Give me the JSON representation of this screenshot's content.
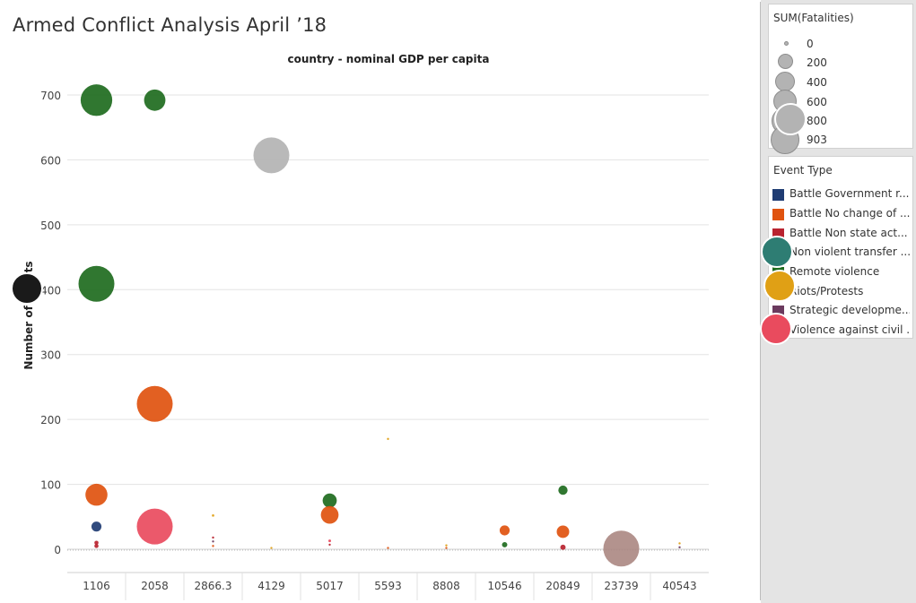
{
  "dashboard": {
    "title": "Armed Conflict Analysis April ’18"
  },
  "chart_data": {
    "type": "scatter",
    "title": "country - nominal GDP per capita",
    "xlabel": "",
    "ylabel": "Number of Events",
    "ylim": [
      0,
      720
    ],
    "yticks": [
      0,
      100,
      200,
      300,
      400,
      500,
      600,
      700
    ],
    "categories": [
      "1106",
      "2058",
      "2866.3",
      "4129",
      "5017",
      "5593",
      "8808",
      "10546",
      "20849",
      "23739",
      "40543"
    ],
    "grid": true,
    "size_legend": {
      "title": "SUM(Fatalities)",
      "values": [
        0,
        200,
        400,
        600,
        800,
        903
      ],
      "labels": [
        "0",
        "200",
        "400",
        "600",
        "800",
        "903"
      ]
    },
    "color_legend": {
      "title": "Event Type",
      "items": [
        {
          "name": "Battle Government r...",
          "color": "#1f3c73"
        },
        {
          "name": "Battle No change of ...",
          "color": "#e0530f"
        },
        {
          "name": "Battle Non state act...",
          "color": "#b8232f"
        },
        {
          "name": "Non violent transfer ...",
          "color": "#2e7d73"
        },
        {
          "name": "Remote violence",
          "color": "#1e6b1e"
        },
        {
          "name": "Riots/Protests",
          "color": "#e0a015"
        },
        {
          "name": "Strategic developme...",
          "color": "#6b3a5e"
        },
        {
          "name": "Violence against civil ...",
          "color": "#e94b5e"
        }
      ]
    },
    "series": [
      {
        "category": "1106",
        "y": 692,
        "fatalities": 700,
        "color": "#1e6b1e"
      },
      {
        "category": "2058",
        "y": 692,
        "fatalities": 320,
        "color": "#1e6b1e"
      },
      {
        "category": "4129",
        "y": 607,
        "fatalities": 903,
        "color": "#b3b3b3"
      },
      {
        "category": "1106",
        "y": 409,
        "fatalities": 903,
        "color": "#1e6b1e"
      },
      {
        "category": "2058",
        "y": 224,
        "fatalities": 903,
        "color": "#e0530f"
      },
      {
        "category": "1106",
        "y": 84,
        "fatalities": 340,
        "color": "#e0530f"
      },
      {
        "category": "1106",
        "y": 35,
        "fatalities": 70,
        "color": "#1f3c73"
      },
      {
        "category": "1106",
        "y": 10,
        "fatalities": 12,
        "color": "#b8232f"
      },
      {
        "category": "1106",
        "y": 5,
        "fatalities": 12,
        "color": "#b8232f"
      },
      {
        "category": "2058",
        "y": 35,
        "fatalities": 903,
        "color": "#e94b5e"
      },
      {
        "category": "2866.3",
        "y": 52,
        "fatalities": 4,
        "color": "#e0a015"
      },
      {
        "category": "2866.3",
        "y": 18,
        "fatalities": 2,
        "color": "#b8232f"
      },
      {
        "category": "2866.3",
        "y": 12,
        "fatalities": 2,
        "color": "#6b3a5e"
      },
      {
        "category": "2866.3",
        "y": 5,
        "fatalities": 2,
        "color": "#e0530f"
      },
      {
        "category": "4129",
        "y": 2,
        "fatalities": 1,
        "color": "#e0a015"
      },
      {
        "category": "5017",
        "y": 75,
        "fatalities": 140,
        "color": "#1e6b1e"
      },
      {
        "category": "5017",
        "y": 53,
        "fatalities": 220,
        "color": "#e0530f"
      },
      {
        "category": "5017",
        "y": 13,
        "fatalities": 5,
        "color": "#e94b5e"
      },
      {
        "category": "5017",
        "y": 7,
        "fatalities": 3,
        "color": "#b8232f"
      },
      {
        "category": "5593",
        "y": 170,
        "fatalities": 1,
        "color": "#e0a015"
      },
      {
        "category": "5593",
        "y": 2,
        "fatalities": 3,
        "color": "#e0530f"
      },
      {
        "category": "8808",
        "y": 6,
        "fatalities": 2,
        "color": "#e0a015"
      },
      {
        "category": "8808",
        "y": 2,
        "fatalities": 1,
        "color": "#e0530f"
      },
      {
        "category": "10546",
        "y": 29,
        "fatalities": 70,
        "color": "#e0530f"
      },
      {
        "category": "10546",
        "y": 7,
        "fatalities": 20,
        "color": "#1e6b1e"
      },
      {
        "category": "20849",
        "y": 91,
        "fatalities": 60,
        "color": "#1e6b1e"
      },
      {
        "category": "20849",
        "y": 27,
        "fatalities": 110,
        "color": "#e0530f"
      },
      {
        "category": "20849",
        "y": 3,
        "fatalities": 20,
        "color": "#b8232f"
      },
      {
        "category": "23739",
        "y": 1,
        "fatalities": 903,
        "color": "#ad8a84"
      },
      {
        "category": "40543",
        "y": 9,
        "fatalities": 2,
        "color": "#e0a015"
      },
      {
        "category": "40543",
        "y": 3,
        "fatalities": 2,
        "color": "#6b3a5e"
      }
    ],
    "overlay_markers": [
      {
        "legend_item": "Non violent transfer ...",
        "color": "#2e7d73"
      },
      {
        "legend_item": "Riots/Protests",
        "color": "#e0a015"
      },
      {
        "legend_item": "Violence against civil ...",
        "color": "#e94b5e"
      },
      {
        "legend_item": "800",
        "color": "#b3b3b3"
      },
      {
        "legend_item": "Number of Events",
        "color": "#1a1a1a"
      }
    ]
  }
}
